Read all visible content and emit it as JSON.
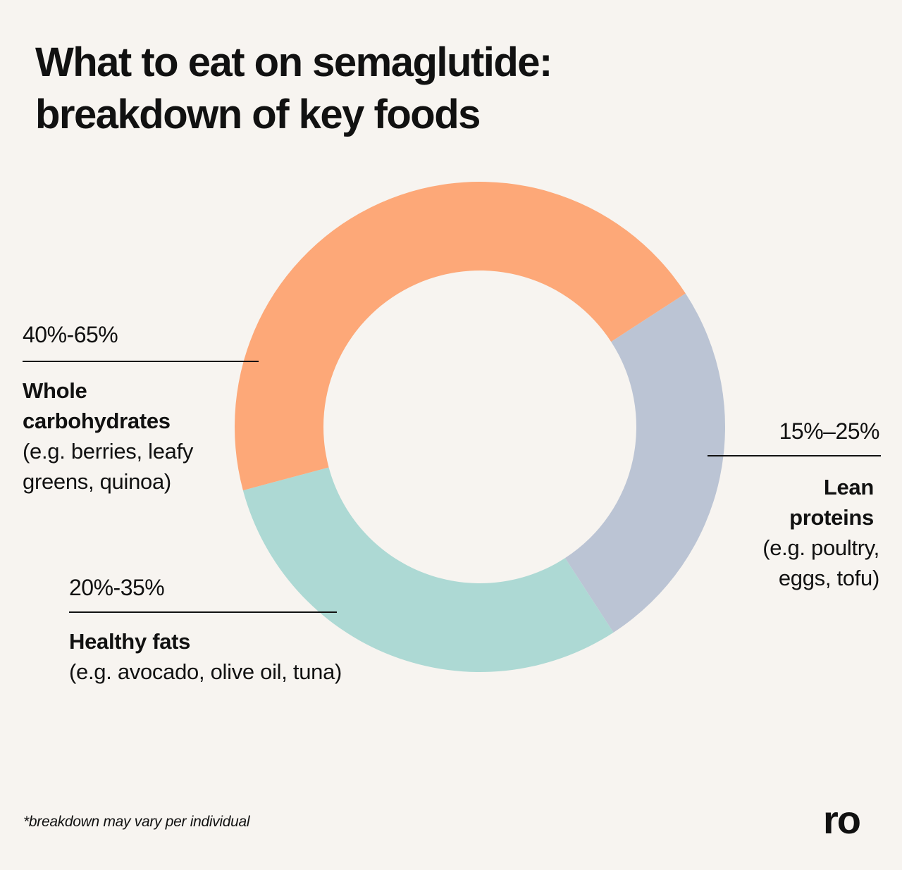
{
  "title_line1": "What to eat on semaglutide:",
  "title_line2": "breakdown of key foods",
  "footnote": "*breakdown may vary per individual",
  "logo": "ro",
  "chart_data": {
    "type": "pie",
    "title": "What to eat on semaglutide: breakdown of key foods",
    "style": "donut",
    "segments": [
      {
        "key": "carbs",
        "range": "40%-65%",
        "range_values": [
          40,
          65
        ],
        "name": "Whole carbohydrates",
        "examples": "(e.g. berries, leafy greens, quinoa)",
        "share": 0.45,
        "color": "#fda878"
      },
      {
        "key": "proteins",
        "range": "15%–25%",
        "range_values": [
          15,
          25
        ],
        "name": "Lean proteins",
        "examples": "(e.g. poultry, eggs, tofu)",
        "share": 0.25,
        "color": "#bbc4d4"
      },
      {
        "key": "fats",
        "range": "20%-35%",
        "range_values": [
          20,
          35
        ],
        "name": "Healthy fats",
        "examples": "(e.g. avocado, olive oil, tuna)",
        "share": 0.3,
        "color": "#add9d4"
      }
    ]
  }
}
